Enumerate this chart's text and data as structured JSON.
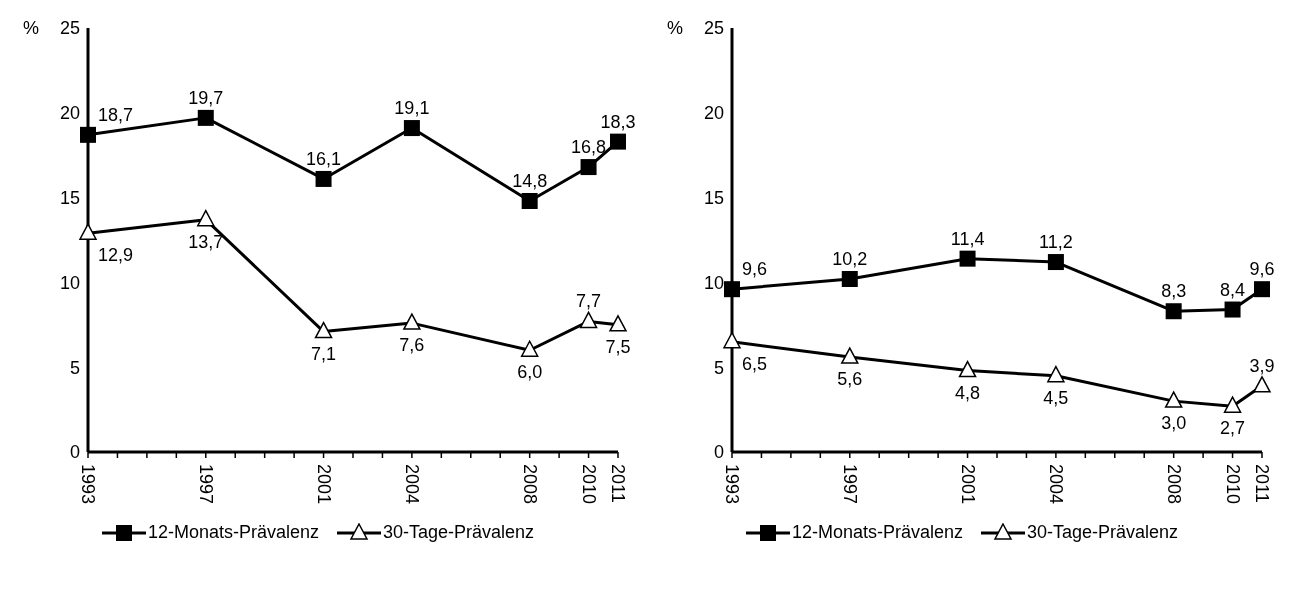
{
  "chart_data": [
    {
      "type": "line",
      "ylabel": "%",
      "x": [
        1993,
        1997,
        2001,
        2004,
        2008,
        2010,
        2011
      ],
      "xlim": [
        1993,
        2011
      ],
      "xticks": [
        1993,
        {
          "value": 1994,
          "label": null
        },
        {
          "value": 1995,
          "label": null
        },
        {
          "value": 1996,
          "label": null
        },
        1997,
        {
          "value": 1998,
          "label": null
        },
        {
          "value": 1999,
          "label": null
        },
        {
          "value": 2000,
          "label": null
        },
        2001,
        {
          "value": 2002,
          "label": null
        },
        {
          "value": 2003,
          "label": null
        },
        2004,
        {
          "value": 2005,
          "label": null
        },
        {
          "value": 2006,
          "label": null
        },
        {
          "value": 2007,
          "label": null
        },
        2008,
        {
          "value": 2009,
          "label": null
        },
        2010,
        2011
      ],
      "ylim": [
        0,
        25
      ],
      "yticks": [
        0,
        5,
        10,
        15,
        20,
        25
      ],
      "grid": false,
      "legend": "bottom",
      "line_style": "solid",
      "series": [
        {
          "name": "12-Monats-Prävalenz",
          "color": "#000000",
          "marker": "square",
          "values": [
            18.7,
            19.7,
            16.1,
            19.1,
            14.8,
            16.8,
            18.3
          ],
          "value_labels": [
            "18,7",
            "19,7",
            "16,1",
            "19,1",
            "14,8",
            "16,8",
            "18,3"
          ]
        },
        {
          "name": "30-Tage-Prävalenz",
          "color": "#000000",
          "marker": "triangle",
          "values": [
            12.9,
            13.7,
            7.1,
            7.6,
            6.0,
            7.7,
            7.5
          ],
          "value_labels": [
            "12,9",
            "13,7",
            "7,1",
            "7,6",
            "6,0",
            "7,7",
            "7,5"
          ]
        }
      ]
    },
    {
      "type": "line",
      "ylabel": "%",
      "x": [
        1993,
        1997,
        2001,
        2004,
        2008,
        2010,
        2011
      ],
      "xlim": [
        1993,
        2011
      ],
      "xticks": [
        1993,
        {
          "value": 1994,
          "label": null
        },
        {
          "value": 1995,
          "label": null
        },
        {
          "value": 1996,
          "label": null
        },
        1997,
        {
          "value": 1998,
          "label": null
        },
        {
          "value": 1999,
          "label": null
        },
        {
          "value": 2000,
          "label": null
        },
        2001,
        {
          "value": 2002,
          "label": null
        },
        {
          "value": 2003,
          "label": null
        },
        2004,
        {
          "value": 2005,
          "label": null
        },
        {
          "value": 2006,
          "label": null
        },
        {
          "value": 2007,
          "label": null
        },
        2008,
        {
          "value": 2009,
          "label": null
        },
        2010,
        2011
      ],
      "ylim": [
        0,
        25
      ],
      "yticks": [
        0,
        5,
        10,
        15,
        20,
        25
      ],
      "grid": false,
      "legend": "bottom",
      "line_style": "solid",
      "series": [
        {
          "name": "12-Monats-Prävalenz",
          "color": "#000000",
          "marker": "square",
          "values": [
            9.6,
            10.2,
            11.4,
            11.2,
            8.3,
            8.4,
            9.6
          ],
          "value_labels": [
            "9,6",
            "10,2",
            "11,4",
            "11,2",
            "8,3",
            "8,4",
            "9,6"
          ]
        },
        {
          "name": "30-Tage-Prävalenz",
          "color": "#000000",
          "marker": "triangle",
          "values": [
            6.5,
            5.6,
            4.8,
            4.5,
            3.0,
            2.7,
            3.9
          ],
          "value_labels": [
            "6,5",
            "5,6",
            "4,8",
            "4,5",
            "3,0",
            "2,7",
            "3,9"
          ]
        }
      ]
    }
  ]
}
